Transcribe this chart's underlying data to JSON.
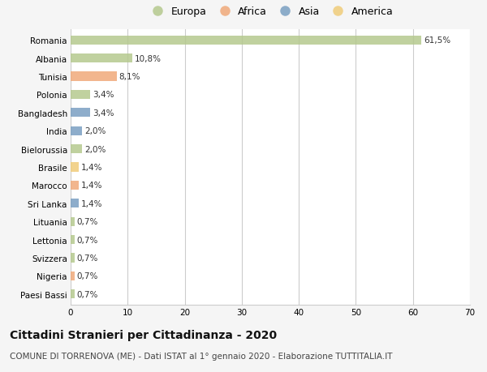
{
  "countries": [
    "Romania",
    "Albania",
    "Tunisia",
    "Polonia",
    "Bangladesh",
    "India",
    "Bielorussia",
    "Brasile",
    "Marocco",
    "Sri Lanka",
    "Lituania",
    "Lettonia",
    "Svizzera",
    "Nigeria",
    "Paesi Bassi"
  ],
  "values": [
    61.5,
    10.8,
    8.1,
    3.4,
    3.4,
    2.0,
    2.0,
    1.4,
    1.4,
    1.4,
    0.7,
    0.7,
    0.7,
    0.7,
    0.7
  ],
  "labels": [
    "61,5%",
    "10,8%",
    "8,1%",
    "3,4%",
    "3,4%",
    "2,0%",
    "2,0%",
    "1,4%",
    "1,4%",
    "1,4%",
    "0,7%",
    "0,7%",
    "0,7%",
    "0,7%",
    "0,7%"
  ],
  "continents": [
    "Europa",
    "Europa",
    "Africa",
    "Europa",
    "Asia",
    "Asia",
    "Europa",
    "America",
    "Africa",
    "Asia",
    "Europa",
    "Europa",
    "Europa",
    "Africa",
    "Europa"
  ],
  "continent_colors": {
    "Europa": "#b5c98e",
    "Africa": "#f0a97a",
    "Asia": "#7a9fc2",
    "America": "#f0cc7a"
  },
  "legend_order": [
    "Europa",
    "Africa",
    "Asia",
    "America"
  ],
  "xlim": [
    0,
    70
  ],
  "xticks": [
    0,
    10,
    20,
    30,
    40,
    50,
    60,
    70
  ],
  "title": "Cittadini Stranieri per Cittadinanza - 2020",
  "subtitle": "COMUNE DI TORRENOVA (ME) - Dati ISTAT al 1° gennaio 2020 - Elaborazione TUTTITALIA.IT",
  "background_color": "#f5f5f5",
  "bar_background": "#ffffff",
  "grid_color": "#cccccc",
  "title_fontsize": 10,
  "subtitle_fontsize": 7.5,
  "label_fontsize": 7.5,
  "tick_fontsize": 7.5,
  "bar_height": 0.5
}
